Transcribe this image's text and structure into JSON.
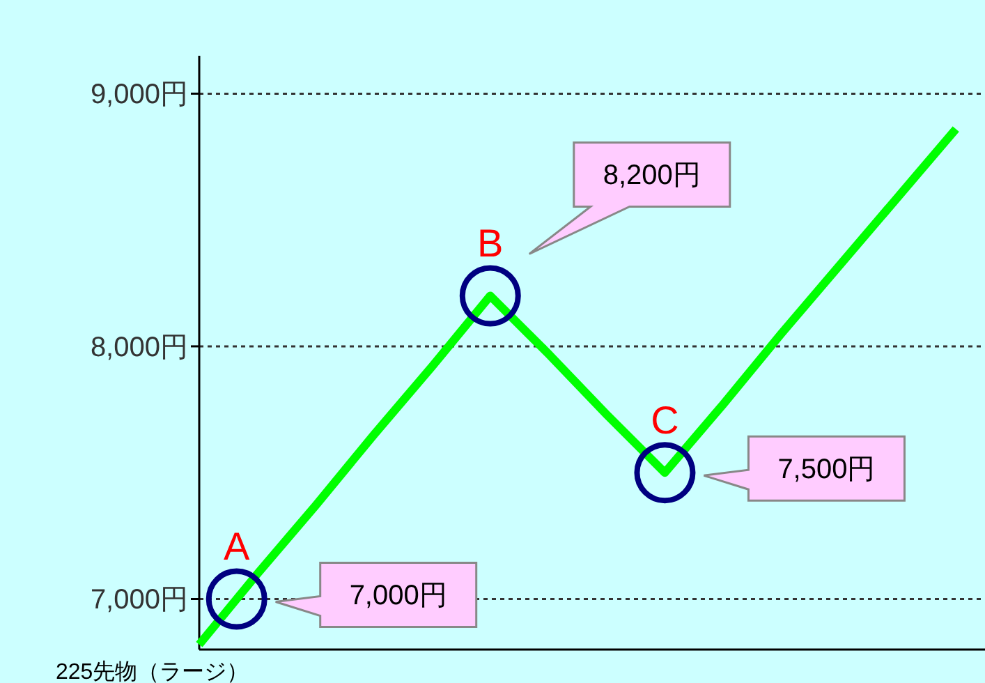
{
  "chart_data": {
    "type": "line",
    "xlabel": "225先物（ラージ）",
    "categories": [
      null,
      null,
      null,
      null,
      null,
      null,
      null,
      null,
      null,
      null,
      null,
      null,
      null,
      null
    ],
    "series": [
      {
        "color": "#00ff00",
        "values": [
          6820,
          7100,
          7370,
          7650,
          7920,
          8200,
          7970,
          7730,
          7500,
          7770,
          8050,
          8320,
          8590,
          8860
        ]
      }
    ],
    "ylim": [
      6800,
      9150
    ],
    "yticks": [
      {
        "value": 7000,
        "label": "7,000円"
      },
      {
        "value": 8000,
        "label": "8,000円"
      },
      {
        "value": 9000,
        "label": "9,000円"
      }
    ],
    "grid": "y",
    "annotations": [
      {
        "text": "A",
        "y": 7000
      },
      "7,000円",
      {
        "text": "B",
        "y": 8200
      },
      "8,200円",
      {
        "text": "C",
        "y": 7500
      },
      "7,500円"
    ]
  }
}
